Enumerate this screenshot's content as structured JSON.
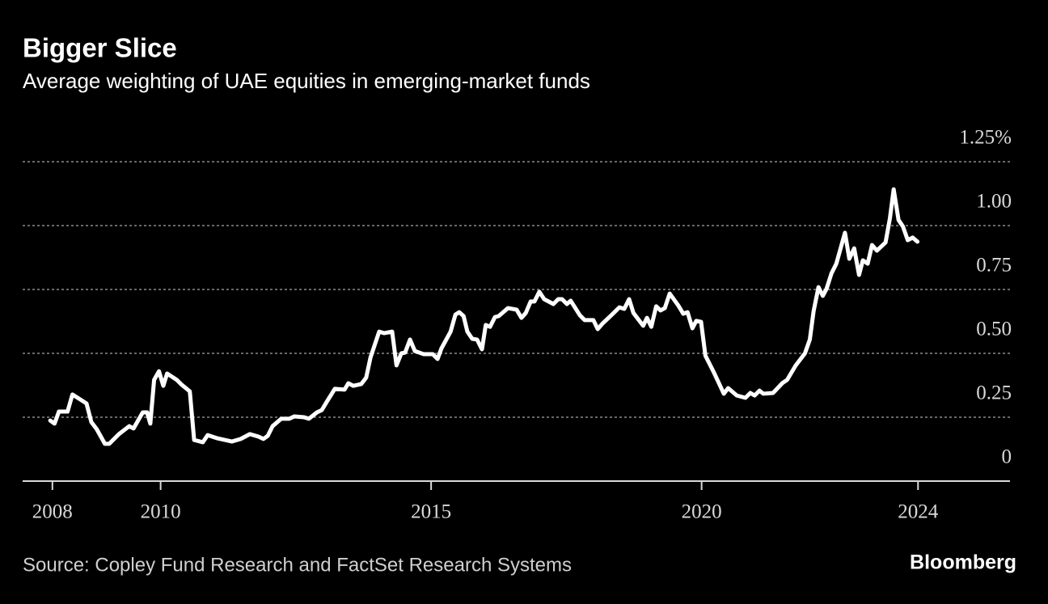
{
  "chart_data": {
    "type": "line",
    "title": "Bigger Slice",
    "subtitle": "Average weighting of UAE equities in emerging-market funds",
    "source": "Source: Copley Fund Research and FactSet Research Systems",
    "brand": "Bloomberg",
    "color": "#ffffff",
    "grid": true,
    "xlim": [
      2007.45,
      2025.7
    ],
    "xticks": [
      2008,
      2010,
      2015,
      2020,
      2024
    ],
    "ylim": [
      0,
      1.25
    ],
    "yticks": [
      0,
      {
        "value": 0.25,
        "label": "0.25"
      },
      {
        "value": 0.5,
        "label": "0.50"
      },
      {
        "value": 0.75,
        "label": "0.75"
      },
      {
        "value": 1,
        "label": "1.00"
      },
      {
        "value": 1.25,
        "label": "1.25%"
      }
    ],
    "x": [
      2007.96,
      2008.04,
      2008.12,
      2008.28,
      2008.37,
      2008.63,
      2008.72,
      2008.82,
      2008.97,
      2009.05,
      2009.23,
      2009.42,
      2009.5,
      2009.67,
      2009.75,
      2009.81,
      2009.88,
      2009.97,
      2010.05,
      2010.12,
      2010.3,
      2010.39,
      2010.54,
      2010.62,
      2010.78,
      2010.87,
      2011.04,
      2011.32,
      2011.48,
      2011.65,
      2011.81,
      2011.9,
      2011.98,
      2012.07,
      2012.23,
      2012.38,
      2012.47,
      2012.65,
      2012.74,
      2012.89,
      2012.98,
      2013.07,
      2013.22,
      2013.4,
      2013.47,
      2013.56,
      2013.71,
      2013.8,
      2013.88,
      2014.04,
      2014.13,
      2014.28,
      2014.36,
      2014.45,
      2014.52,
      2014.61,
      2014.7,
      2014.86,
      2015.03,
      2015.12,
      2015.19,
      2015.36,
      2015.45,
      2015.52,
      2015.6,
      2015.67,
      2015.76,
      2015.85,
      2015.94,
      2016.01,
      2016.09,
      2016.18,
      2016.25,
      2016.42,
      2016.58,
      2016.67,
      2016.75,
      2016.84,
      2016.91,
      2017.0,
      2017.09,
      2017.26,
      2017.35,
      2017.42,
      2017.51,
      2017.58,
      2017.75,
      2017.84,
      2018.0,
      2018.08,
      2018.17,
      2018.33,
      2018.48,
      2018.57,
      2018.66,
      2018.74,
      2018.92,
      2018.99,
      2019.07,
      2019.16,
      2019.24,
      2019.32,
      2019.41,
      2019.57,
      2019.66,
      2019.74,
      2019.83,
      2019.9,
      2019.99,
      2020.07,
      2020.23,
      2020.41,
      2020.49,
      2020.65,
      2020.81,
      2020.9,
      2020.98,
      2021.07,
      2021.14,
      2021.32,
      2021.49,
      2021.58,
      2021.74,
      2021.91,
      2022.0,
      2022.07,
      2022.16,
      2022.24,
      2022.31,
      2022.4,
      2022.49,
      2022.65,
      2022.73,
      2022.82,
      2022.91,
      2022.98,
      2023.07,
      2023.15,
      2023.24,
      2023.4,
      2023.48,
      2023.55,
      2023.64,
      2023.72,
      2023.81,
      2023.9,
      2023.99
    ],
    "values": [
      0.237,
      0.225,
      0.272,
      0.272,
      0.339,
      0.304,
      0.231,
      0.203,
      0.146,
      0.146,
      0.184,
      0.215,
      0.206,
      0.269,
      0.269,
      0.225,
      0.396,
      0.43,
      0.373,
      0.421,
      0.396,
      0.377,
      0.351,
      0.161,
      0.152,
      0.18,
      0.168,
      0.155,
      0.165,
      0.184,
      0.174,
      0.165,
      0.177,
      0.215,
      0.244,
      0.244,
      0.253,
      0.25,
      0.244,
      0.269,
      0.278,
      0.31,
      0.361,
      0.358,
      0.383,
      0.373,
      0.38,
      0.405,
      0.484,
      0.585,
      0.579,
      0.585,
      0.453,
      0.5,
      0.503,
      0.554,
      0.509,
      0.497,
      0.497,
      0.478,
      0.519,
      0.585,
      0.652,
      0.661,
      0.646,
      0.585,
      0.557,
      0.554,
      0.516,
      0.611,
      0.604,
      0.642,
      0.646,
      0.677,
      0.671,
      0.639,
      0.658,
      0.703,
      0.703,
      0.741,
      0.712,
      0.693,
      0.712,
      0.712,
      0.693,
      0.706,
      0.649,
      0.63,
      0.63,
      0.595,
      0.617,
      0.649,
      0.68,
      0.674,
      0.712,
      0.658,
      0.608,
      0.639,
      0.604,
      0.684,
      0.668,
      0.677,
      0.734,
      0.687,
      0.655,
      0.661,
      0.598,
      0.627,
      0.623,
      0.491,
      0.424,
      0.342,
      0.364,
      0.335,
      0.326,
      0.345,
      0.335,
      0.354,
      0.342,
      0.345,
      0.383,
      0.396,
      0.453,
      0.5,
      0.554,
      0.665,
      0.759,
      0.725,
      0.753,
      0.813,
      0.851,
      0.972,
      0.87,
      0.911,
      0.807,
      0.864,
      0.851,
      0.924,
      0.902,
      0.934,
      1.028,
      1.142,
      1.022,
      0.997,
      0.943,
      0.953,
      0.937
    ]
  }
}
